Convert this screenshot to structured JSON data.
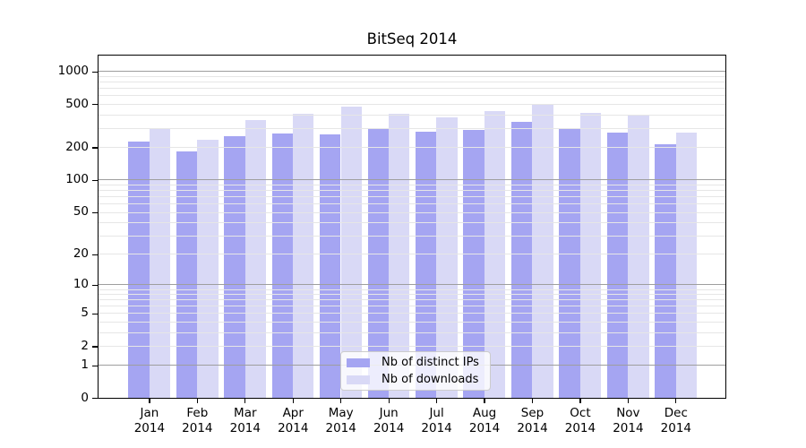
{
  "chart_data": {
    "type": "bar",
    "title": "BitSeq 2014",
    "categories": [
      "Jan",
      "Feb",
      "Mar",
      "Apr",
      "May",
      "Jun",
      "Jul",
      "Aug",
      "Sep",
      "Oct",
      "Nov",
      "Dec"
    ],
    "year_label": "2014",
    "series": [
      {
        "name": "Nb of distinct IPs",
        "color": "#a5a5f2",
        "values": [
          225,
          182,
          254,
          267,
          262,
          301,
          277,
          286,
          343,
          301,
          274,
          211
        ]
      },
      {
        "name": "Nb of downloads",
        "color": "#d9d9f6",
        "values": [
          295,
          235,
          355,
          403,
          472,
          403,
          378,
          426,
          497,
          410,
          391,
          274
        ]
      }
    ],
    "y_ticks": [
      0,
      1,
      2,
      5,
      10,
      20,
      50,
      100,
      200,
      500,
      1000
    ],
    "y_scale": "log10(value+1)",
    "ylim": [
      0,
      1380
    ],
    "xlabel": "",
    "ylabel": "",
    "grid": true,
    "legend_position": "lower-center"
  }
}
